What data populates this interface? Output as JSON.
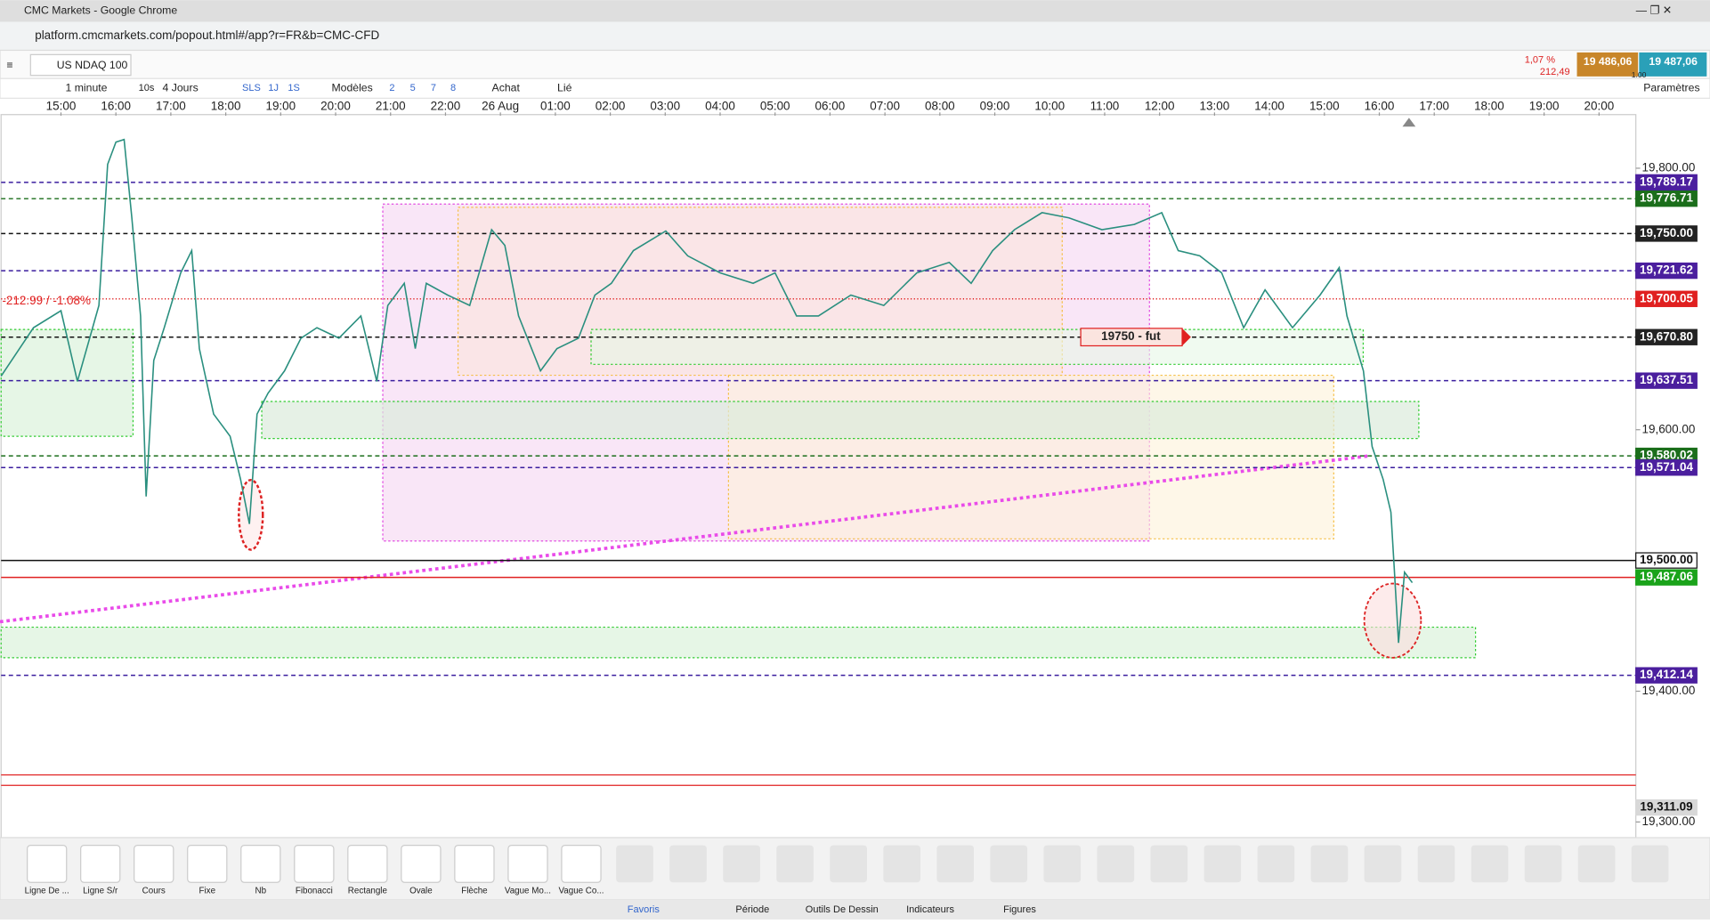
{
  "window": {
    "title": "CMC Markets - Google Chrome",
    "url": "platform.cmcmarkets.com/popout.html#/app?r=FR&b=CMC-CFD"
  },
  "instrument": {
    "name": "US NDAQ 100",
    "change_pct": "1,07 %",
    "change": "212,49",
    "sell": "19 486,06",
    "buy": "19 487,06",
    "spread": "1.00"
  },
  "toolbar": {
    "interval": "1 minute",
    "s10": "10s",
    "range": "4 Jours",
    "sls": "SLS",
    "d1": "1J",
    "w1": "1S",
    "models": "Modèles",
    "n2": "2",
    "n5": "5",
    "n7": "7",
    "n8": "8",
    "buy": "Achat",
    "linked": "Lié",
    "settings": "Paramètres"
  },
  "tools": [
    "Ligne De ...",
    "Ligne S/r",
    "Cours",
    "Fixe",
    "Nb",
    "Fibonacci",
    "Rectangle",
    "Ovale",
    "Flèche",
    "Vague Mo...",
    "Vague Co..."
  ],
  "tabs": [
    "Favoris",
    "Période",
    "Outils De Dessin",
    "Indicateurs",
    "Figures"
  ],
  "chart_data": {
    "type": "line",
    "xlim": [
      -1.09,
      28.67
    ],
    "xticks": [
      {
        "value": 0,
        "label": "15:00"
      },
      {
        "value": 1,
        "label": "16:00"
      },
      {
        "value": 2,
        "label": "17:00"
      },
      {
        "value": 3,
        "label": "18:00"
      },
      {
        "value": 4,
        "label": "19:00"
      },
      {
        "value": 5,
        "label": "20:00"
      },
      {
        "value": 6,
        "label": "21:00"
      },
      {
        "value": 7,
        "label": "22:00"
      },
      {
        "value": 8,
        "label": "26 Aug"
      },
      {
        "value": 9,
        "label": "01:00"
      },
      {
        "value": 10,
        "label": "02:00"
      },
      {
        "value": 11,
        "label": "03:00"
      },
      {
        "value": 12,
        "label": "04:00"
      },
      {
        "value": 13,
        "label": "05:00"
      },
      {
        "value": 14,
        "label": "06:00"
      },
      {
        "value": 15,
        "label": "07:00"
      },
      {
        "value": 16,
        "label": "08:00"
      },
      {
        "value": 17,
        "label": "09:00"
      },
      {
        "value": 18,
        "label": "10:00"
      },
      {
        "value": 19,
        "label": "11:00"
      },
      {
        "value": 20,
        "label": "12:00"
      },
      {
        "value": 21,
        "label": "13:00"
      },
      {
        "value": 22,
        "label": "14:00"
      },
      {
        "value": 23,
        "label": "15:00"
      },
      {
        "value": 24,
        "label": "16:00"
      },
      {
        "value": 25,
        "label": "17:00"
      },
      {
        "value": 26,
        "label": "18:00"
      },
      {
        "value": 27,
        "label": "19:00"
      },
      {
        "value": 28,
        "label": "20:00"
      }
    ],
    "ylim": [
      19288,
      19841
    ],
    "yticks": [
      {
        "value": 19800,
        "label": "19,800.00"
      },
      {
        "value": 19600,
        "label": "19,600.00"
      },
      {
        "value": 19400,
        "label": "19,400.00"
      },
      {
        "value": 19300,
        "label": "19,300.00"
      }
    ],
    "annotation": "-212.99 / -1.08%",
    "note": "19750 - fut",
    "levels": [
      {
        "value": 19789.17,
        "label": "19,789.17",
        "color": "#3a1d9e",
        "box": "#4b1f9e",
        "style": "dashed"
      },
      {
        "value": 19776.71,
        "label": "19,776.71",
        "color": "#1b6e1b",
        "box": "#1b6e1b",
        "style": "dashed"
      },
      {
        "value": 19750,
        "label": "19,750.00",
        "color": "#111111",
        "box": "#222222",
        "style": "dashed"
      },
      {
        "value": 19721.62,
        "label": "19,721.62",
        "color": "#3a1d9e",
        "box": "#4b1f9e",
        "style": "dashed"
      },
      {
        "value": 19700.05,
        "label": "19,700.05",
        "color": "#e02020",
        "box": "#e02020",
        "style": "dotted"
      },
      {
        "value": 19670.8,
        "label": "19,670.80",
        "color": "#111111",
        "box": "#222222",
        "style": "dashed"
      },
      {
        "value": 19637.51,
        "label": "19,637.51",
        "color": "#3a1d9e",
        "box": "#4b1f9e",
        "style": "dashed"
      },
      {
        "value": 19580.02,
        "label": "19,580.02",
        "color": "#1b6e1b",
        "box": "#1b6e1b",
        "style": "dashed"
      },
      {
        "value": 19571.04,
        "label": "19,571.04",
        "color": "#3a1d9e",
        "box": "#4b1f9e",
        "style": "dashed"
      },
      {
        "value": 19500,
        "label": "19,500.00",
        "color": "#111111",
        "box": "#ffffff",
        "style": "solid"
      },
      {
        "value": 19487.06,
        "label": "19,487.06",
        "color": "#e02020",
        "box": "#1aa31a",
        "style": "solid"
      },
      {
        "value": 19412.14,
        "label": "19,412.14",
        "color": "#3a1d9e",
        "box": "#4b1f9e",
        "style": "dashed"
      },
      {
        "value": 19311.09,
        "label": "19,311.09",
        "color": "#999999",
        "box": "#d8d8d8",
        "style": "none"
      }
    ],
    "extra_lines": [
      19336,
      19328
    ],
    "series": [
      {
        "color": "#2a8f7f",
        "x": [
          -1.09,
          -0.5,
          0,
          0.3,
          0.69,
          0.85,
          1.0,
          1.15,
          1.29,
          1.45,
          1.55,
          1.69,
          1.88,
          2.18,
          2.38,
          2.52,
          2.78,
          3.08,
          3.27,
          3.43,
          3.57,
          3.77,
          4.07,
          4.37,
          4.66,
          5.06,
          5.46,
          5.75,
          5.95,
          6.25,
          6.45,
          6.65,
          7.04,
          7.44,
          7.84,
          8.08,
          8.33,
          8.73,
          9.03,
          9.42,
          9.72,
          10.02,
          10.42,
          11.01,
          11.41,
          12.0,
          12.6,
          13.0,
          13.39,
          13.79,
          14.38,
          14.98,
          15.58,
          16.17,
          16.57,
          16.96,
          17.36,
          17.86,
          18.35,
          18.95,
          19.54,
          20.04,
          20.34,
          20.73,
          21.13,
          21.53,
          21.92,
          22.42,
          22.92,
          23.27,
          23.41,
          23.71,
          23.87,
          24.07,
          24.21,
          24.27,
          24.35,
          24.46,
          24.6
        ],
        "values": [
          19641,
          19678,
          19691,
          19637,
          19695,
          19803,
          19820,
          19822,
          19762,
          19687,
          19549,
          19653,
          19678,
          19720,
          19737,
          19662,
          19612,
          19595,
          19562,
          19528,
          19612,
          19628,
          19645,
          19670,
          19678,
          19670,
          19687,
          19637,
          19695,
          19712,
          19662,
          19712,
          19703,
          19695,
          19753,
          19741,
          19687,
          19645,
          19662,
          19670,
          19703,
          19712,
          19737,
          19752,
          19733,
          19720,
          19712,
          19720,
          19687,
          19687,
          19703,
          19695,
          19720,
          19728,
          19712,
          19737,
          19753,
          19766,
          19762,
          19753,
          19757,
          19766,
          19737,
          19733,
          19720,
          19678,
          19707,
          19678,
          19703,
          19724,
          19687,
          19645,
          19587,
          19562,
          19537,
          19495,
          19437,
          19491,
          19483
        ]
      }
    ]
  }
}
